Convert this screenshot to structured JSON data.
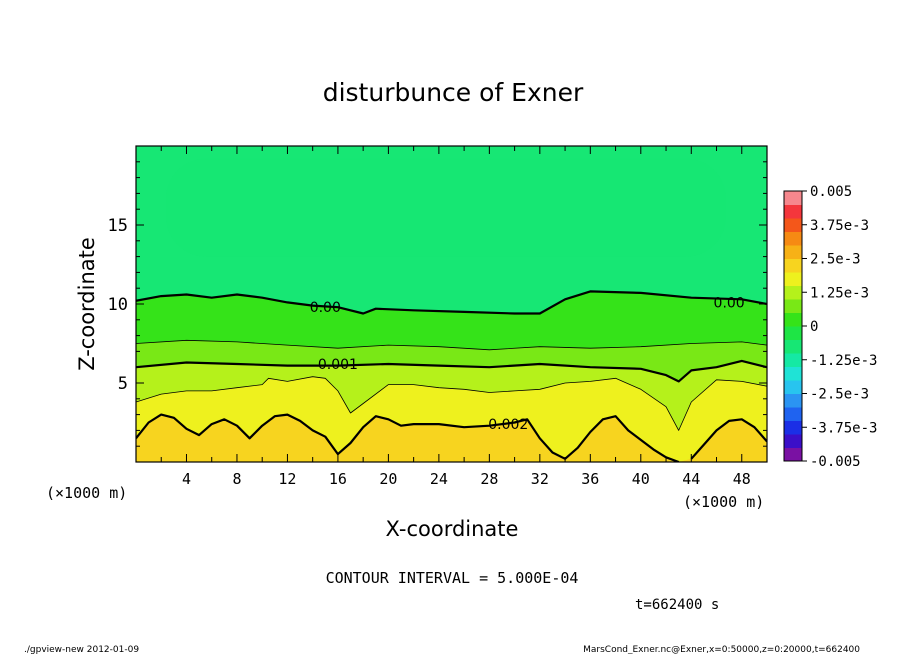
{
  "chart_data": {
    "type": "heatmap",
    "title": "disturbunce of Exner",
    "xlabel": "X-coordinate",
    "ylabel": "Z-coordinate",
    "x_unit_left": "(×1000 m)",
    "x_unit_right": "(×1000 m)",
    "xlim": [
      0,
      50
    ],
    "ylim": [
      0,
      20
    ],
    "x_ticks": [
      4,
      8,
      12,
      16,
      20,
      24,
      28,
      32,
      36,
      40,
      44,
      48
    ],
    "y_ticks": [
      5,
      10,
      15
    ],
    "colorbar": {
      "min": -0.005,
      "max": 0.005,
      "tick_labels": [
        "0.005",
        "3.75e-3",
        "2.5e-3",
        "1.25e-3",
        "0",
        "-1.25e-3",
        "-2.5e-3",
        "-3.75e-3",
        "-0.005"
      ],
      "tick_values": [
        0.005,
        0.00375,
        0.0025,
        0.00125,
        0,
        -0.00125,
        -0.0025,
        -0.00375,
        -0.005
      ]
    },
    "contour_interval": "5.000E-04",
    "contour_labels": [
      {
        "text": "0.00",
        "x": 15,
        "z": 9.8
      },
      {
        "text": "0.00",
        "x": 47,
        "z": 10.1
      },
      {
        "text": "0.001",
        "x": 16,
        "z": 6.2
      },
      {
        "text": "0.002",
        "x": 29.5,
        "z": 2.4
      }
    ],
    "contours": [
      {
        "value": 0.0,
        "weight": "bold",
        "points": [
          [
            0,
            10.2
          ],
          [
            2,
            10.5
          ],
          [
            4,
            10.6
          ],
          [
            6,
            10.4
          ],
          [
            8,
            10.6
          ],
          [
            10,
            10.4
          ],
          [
            12,
            10.1
          ],
          [
            14,
            9.9
          ],
          [
            16,
            9.8
          ],
          [
            18,
            9.4
          ],
          [
            19,
            9.7
          ],
          [
            22,
            9.6
          ],
          [
            26,
            9.5
          ],
          [
            30,
            9.4
          ],
          [
            32,
            9.4
          ],
          [
            34,
            10.3
          ],
          [
            36,
            10.8
          ],
          [
            40,
            10.7
          ],
          [
            44,
            10.4
          ],
          [
            48,
            10.3
          ],
          [
            50,
            10.0
          ]
        ]
      },
      {
        "value": 0.0005,
        "weight": "thin",
        "points": [
          [
            0,
            7.5
          ],
          [
            4,
            7.7
          ],
          [
            8,
            7.6
          ],
          [
            12,
            7.4
          ],
          [
            16,
            7.2
          ],
          [
            20,
            7.4
          ],
          [
            24,
            7.3
          ],
          [
            28,
            7.1
          ],
          [
            32,
            7.3
          ],
          [
            36,
            7.2
          ],
          [
            40,
            7.3
          ],
          [
            44,
            7.5
          ],
          [
            48,
            7.6
          ],
          [
            50,
            7.4
          ]
        ]
      },
      {
        "value": 0.001,
        "weight": "bold",
        "points": [
          [
            0,
            6.0
          ],
          [
            4,
            6.3
          ],
          [
            8,
            6.2
          ],
          [
            12,
            6.1
          ],
          [
            16,
            6.1
          ],
          [
            20,
            6.2
          ],
          [
            24,
            6.1
          ],
          [
            28,
            6.0
          ],
          [
            32,
            6.2
          ],
          [
            36,
            6.0
          ],
          [
            40,
            5.9
          ],
          [
            42,
            5.5
          ],
          [
            43,
            5.1
          ],
          [
            44,
            5.8
          ],
          [
            46,
            6.0
          ],
          [
            48,
            6.4
          ],
          [
            50,
            6.0
          ]
        ]
      },
      {
        "value": 0.0015,
        "weight": "thin",
        "points": [
          [
            0,
            3.8
          ],
          [
            2,
            4.3
          ],
          [
            4,
            4.5
          ],
          [
            6,
            4.5
          ],
          [
            8,
            4.7
          ],
          [
            10,
            4.9
          ],
          [
            10.5,
            5.3
          ],
          [
            12,
            5.1
          ],
          [
            14,
            5.4
          ],
          [
            15,
            5.3
          ],
          [
            16,
            4.5
          ],
          [
            17,
            3.1
          ],
          [
            18,
            3.7
          ],
          [
            20,
            4.9
          ],
          [
            22,
            4.9
          ],
          [
            24,
            4.7
          ],
          [
            26,
            4.6
          ],
          [
            28,
            4.4
          ],
          [
            30,
            4.5
          ],
          [
            32,
            4.6
          ],
          [
            34,
            5.0
          ],
          [
            36,
            5.1
          ],
          [
            38,
            5.3
          ],
          [
            40,
            4.6
          ],
          [
            42,
            3.5
          ],
          [
            43,
            2.0
          ],
          [
            44,
            3.8
          ],
          [
            46,
            5.2
          ],
          [
            48,
            5.1
          ],
          [
            50,
            4.8
          ]
        ]
      },
      {
        "value": 0.002,
        "weight": "bold",
        "points": [
          [
            0,
            1.5
          ],
          [
            1,
            2.5
          ],
          [
            2,
            3.0
          ],
          [
            3,
            2.8
          ],
          [
            4,
            2.1
          ],
          [
            5,
            1.7
          ],
          [
            6,
            2.4
          ],
          [
            7,
            2.7
          ],
          [
            8,
            2.3
          ],
          [
            9,
            1.5
          ],
          [
            10,
            2.3
          ],
          [
            11,
            2.9
          ],
          [
            12,
            3.0
          ],
          [
            13,
            2.6
          ],
          [
            14,
            2.0
          ],
          [
            15,
            1.6
          ],
          [
            16,
            0.5
          ],
          [
            17,
            1.2
          ],
          [
            18,
            2.2
          ],
          [
            19,
            2.9
          ],
          [
            20,
            2.7
          ],
          [
            21,
            2.3
          ],
          [
            22,
            2.4
          ],
          [
            24,
            2.4
          ],
          [
            26,
            2.2
          ],
          [
            28,
            2.3
          ],
          [
            30,
            2.5
          ],
          [
            31,
            2.7
          ],
          [
            32,
            1.5
          ],
          [
            33,
            0.6
          ],
          [
            34,
            0.2
          ],
          [
            35,
            0.9
          ],
          [
            36,
            1.9
          ],
          [
            37,
            2.7
          ],
          [
            38,
            2.9
          ],
          [
            39,
            2.0
          ],
          [
            40,
            1.4
          ],
          [
            41,
            0.8
          ],
          [
            42,
            0.3
          ],
          [
            43,
            0.0
          ]
        ]
      },
      {
        "value": 0.002,
        "weight": "bold",
        "points": [
          [
            44,
            0.2
          ],
          [
            45,
            1.1
          ],
          [
            46,
            2.0
          ],
          [
            47,
            2.6
          ],
          [
            48,
            2.7
          ],
          [
            49,
            2.2
          ],
          [
            50,
            1.3
          ]
        ]
      }
    ]
  },
  "contour_interval_text": "CONTOUR INTERVAL = 5.000E-04",
  "time_text": "t=662400 s",
  "footer_left": "./gpview-new  2012-01-09",
  "footer_right": "MarsCond_Exner.nc@Exner,x=0:50000,z=0:20000,t=662400"
}
